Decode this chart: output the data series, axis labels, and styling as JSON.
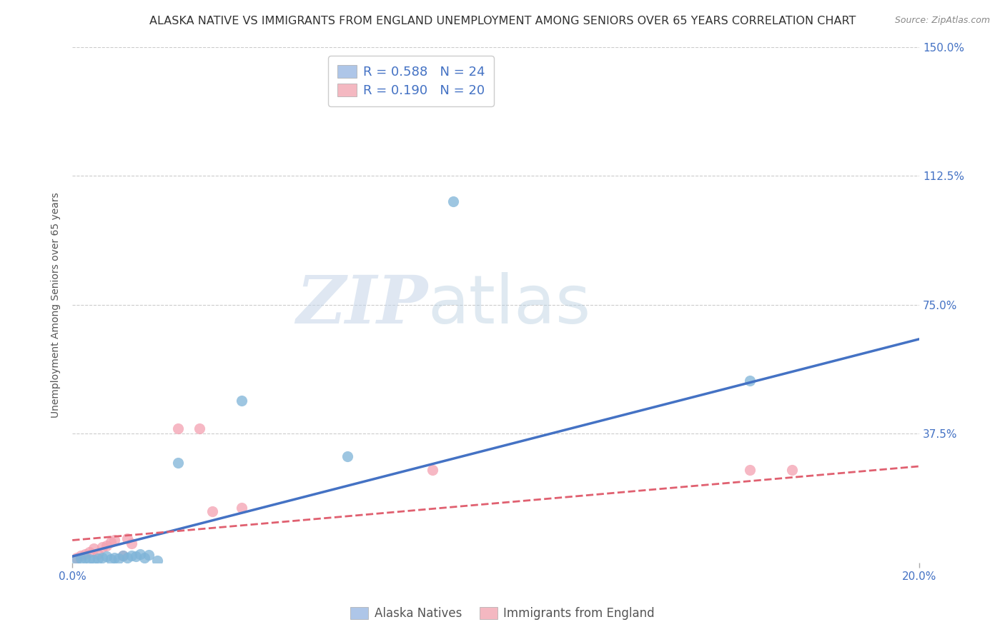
{
  "title": "ALASKA NATIVE VS IMMIGRANTS FROM ENGLAND UNEMPLOYMENT AMONG SENIORS OVER 65 YEARS CORRELATION CHART",
  "source": "Source: ZipAtlas.com",
  "ylabel": "Unemployment Among Seniors over 65 years",
  "xlim": [
    0.0,
    0.2
  ],
  "ylim": [
    0.0,
    1.5
  ],
  "ytick_labels": [
    "37.5%",
    "75.0%",
    "112.5%",
    "150.0%"
  ],
  "ytick_values": [
    0.375,
    0.75,
    1.125,
    1.5
  ],
  "xtick_labels": [
    "0.0%",
    "20.0%"
  ],
  "xtick_values": [
    0.0,
    0.2
  ],
  "grid_color": "#cccccc",
  "background_color": "#ffffff",
  "watermark_zip": "ZIP",
  "watermark_atlas": "atlas",
  "legend_label1": "R = 0.588   N = 24",
  "legend_label2": "R = 0.190   N = 20",
  "legend_color1": "#aec6e8",
  "legend_color2": "#f4b8c1",
  "scatter_color1": "#7EB4D8",
  "scatter_color2": "#F4A0B0",
  "line_color1": "#4472C4",
  "line_color2": "#E06070",
  "scatter1_x": [
    0.001,
    0.002,
    0.003,
    0.004,
    0.005,
    0.006,
    0.007,
    0.008,
    0.009,
    0.01,
    0.011,
    0.012,
    0.013,
    0.014,
    0.015,
    0.016,
    0.017,
    0.018,
    0.02,
    0.025,
    0.04,
    0.065,
    0.09,
    0.16
  ],
  "scatter1_y": [
    0.01,
    0.012,
    0.015,
    0.01,
    0.008,
    0.012,
    0.015,
    0.018,
    0.01,
    0.015,
    0.012,
    0.02,
    0.015,
    0.02,
    0.018,
    0.025,
    0.015,
    0.022,
    0.005,
    0.29,
    0.47,
    0.31,
    1.05,
    0.53
  ],
  "scatter2_x": [
    0.001,
    0.002,
    0.003,
    0.004,
    0.005,
    0.006,
    0.007,
    0.008,
    0.009,
    0.01,
    0.012,
    0.013,
    0.014,
    0.025,
    0.03,
    0.033,
    0.04,
    0.085,
    0.16,
    0.17
  ],
  "scatter2_y": [
    0.015,
    0.02,
    0.025,
    0.03,
    0.04,
    0.025,
    0.045,
    0.05,
    0.06,
    0.065,
    0.02,
    0.07,
    0.055,
    0.39,
    0.39,
    0.15,
    0.16,
    0.27,
    0.27,
    0.27
  ],
  "line1_x0": 0.0,
  "line1_y0": 0.018,
  "line1_x1": 0.2,
  "line1_y1": 0.65,
  "line2_x0": 0.0,
  "line2_y0": 0.065,
  "line2_x1": 0.2,
  "line2_y1": 0.28,
  "R1": 0.588,
  "N1": 24,
  "R2": 0.19,
  "N2": 20,
  "legend_bottom_labels": [
    "Alaska Natives",
    "Immigrants from England"
  ],
  "title_color": "#333333",
  "axis_color": "#4472C4",
  "tick_color": "#4472C4"
}
